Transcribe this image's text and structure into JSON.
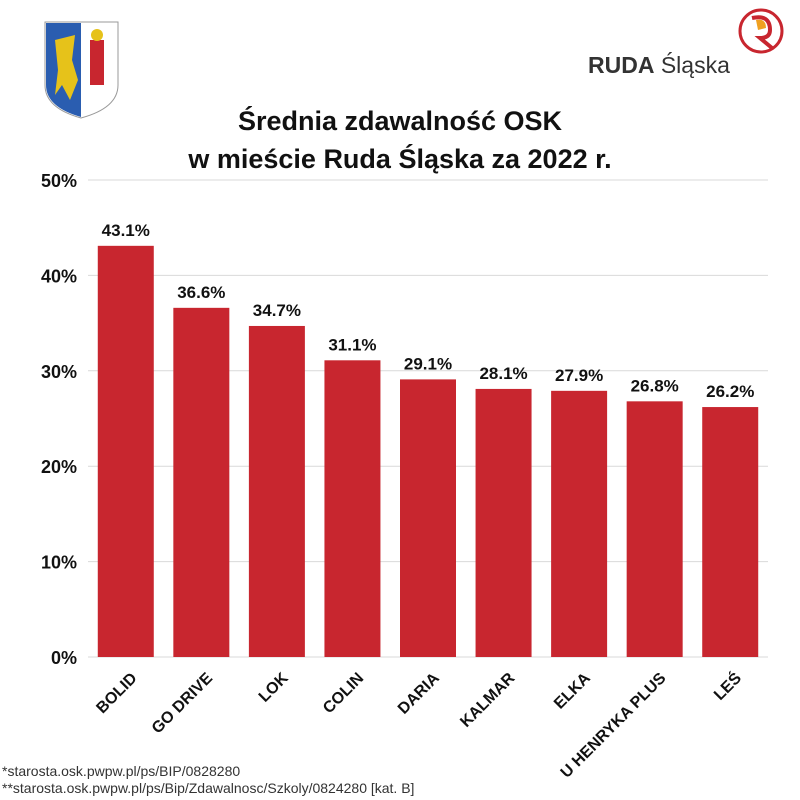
{
  "title_lines": [
    "Średnia zdawalność OSK",
    "w mieście Ruda Śląska za 2022 r."
  ],
  "logo": {
    "bold": "RUDA",
    "regular": "Śląska"
  },
  "footnotes": [
    "*starosta.osk.pwpw.pl/ps/BIP/0828280",
    "**starosta.osk.pwpw.pl/ps/Bip/Zdawalnosc/Szkoly/0824280 [kat. B]"
  ],
  "chart_data": {
    "type": "bar",
    "categories": [
      "BOLID",
      "GO DRIVE",
      "LOK",
      "COLIN",
      "DARIA",
      "KALMAR",
      "ELKA",
      "U HENRYKA PLUS",
      "LEŚ"
    ],
    "values": [
      43.1,
      36.6,
      34.7,
      31.1,
      29.1,
      28.1,
      27.9,
      26.8,
      26.2
    ],
    "data_labels": [
      "43.1%",
      "36.6%",
      "34.7%",
      "31.1%",
      "29.1%",
      "28.1%",
      "27.9%",
      "26.8%",
      "26.2%"
    ],
    "yticks": [
      0,
      10,
      20,
      30,
      40,
      50
    ],
    "ytick_labels": [
      "0%",
      "10%",
      "20%",
      "30%",
      "40%",
      "50%"
    ],
    "ylim": [
      0,
      50
    ],
    "grid": true,
    "bar_color": "#c8262f"
  }
}
